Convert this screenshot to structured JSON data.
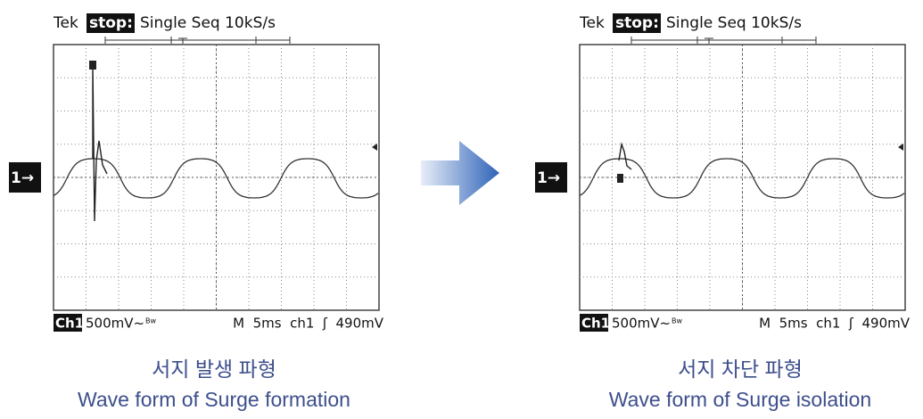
{
  "panels": [
    {
      "header": {
        "brand": "Tek",
        "state": "stop:",
        "mode": "Single Seq 10kS/s"
      },
      "channel_marker": "1→",
      "footer": {
        "channel": "Ch1",
        "scale": "500mV~",
        "bw": "Bw",
        "timebase": "M  5ms  ch1  ʃ  490mV"
      },
      "caption": {
        "korean": "서지 발생 파형",
        "english": "Wave form of Surge formation"
      }
    },
    {
      "header": {
        "brand": "Tek",
        "state": "stop:",
        "mode": "Single Seq 10kS/s"
      },
      "channel_marker": "1→",
      "footer": {
        "channel": "Ch1",
        "scale": "500mV~",
        "bw": "Bw",
        "timebase": "M  5ms  ch1  ʃ  490mV"
      },
      "caption": {
        "korean": "서지 차단 파형",
        "english": "Wave form of Surge isolation"
      }
    }
  ]
}
